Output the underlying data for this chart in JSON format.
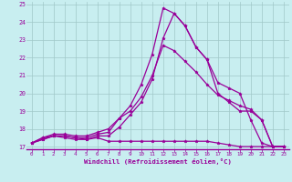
{
  "xlabel": "Windchill (Refroidissement éolien,°C)",
  "bg_color": "#c8eef0",
  "line_color": "#990099",
  "grid_color": "#a0c8c8",
  "xmin": 0,
  "xmax": 23,
  "ymin": 17,
  "ymax": 25,
  "xticks": [
    0,
    1,
    2,
    3,
    4,
    5,
    6,
    7,
    8,
    9,
    10,
    11,
    12,
    13,
    14,
    15,
    16,
    17,
    18,
    19,
    20,
    21,
    22,
    23
  ],
  "yticks": [
    17,
    18,
    19,
    20,
    21,
    22,
    23,
    24,
    25
  ],
  "curves": [
    [
      17.2,
      17.4,
      17.6,
      17.6,
      17.5,
      17.4,
      17.5,
      17.3,
      17.3,
      17.3,
      17.3,
      17.3,
      17.3,
      17.3,
      17.3,
      17.3,
      17.3,
      17.2,
      17.1,
      17.0,
      17.0,
      17.0,
      17.0,
      17.0
    ],
    [
      17.2,
      17.5,
      17.7,
      17.7,
      17.6,
      17.6,
      17.8,
      18.0,
      18.6,
      19.0,
      19.8,
      21.0,
      22.7,
      22.4,
      21.8,
      21.2,
      20.5,
      19.9,
      19.6,
      19.3,
      19.1,
      18.5,
      17.0,
      17.0
    ],
    [
      17.2,
      17.5,
      17.6,
      17.6,
      17.5,
      17.5,
      17.7,
      17.8,
      18.6,
      19.3,
      20.5,
      22.2,
      24.8,
      24.5,
      23.8,
      22.6,
      21.9,
      20.6,
      20.3,
      20.0,
      18.5,
      17.2,
      17.0,
      17.0
    ],
    [
      17.2,
      17.4,
      17.6,
      17.5,
      17.4,
      17.4,
      17.6,
      17.6,
      18.1,
      18.8,
      19.5,
      20.8,
      23.1,
      24.5,
      23.8,
      22.6,
      21.9,
      20.0,
      19.5,
      19.0,
      19.0,
      18.5,
      17.0,
      17.0
    ]
  ]
}
